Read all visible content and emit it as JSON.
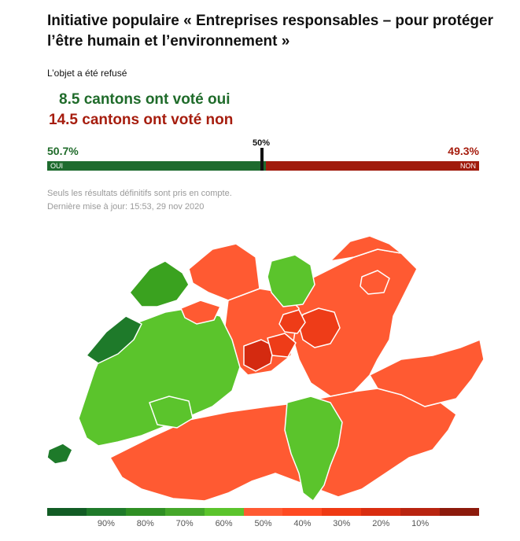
{
  "title": "Initiative populaire « Entreprises responsables – pour protéger l’être humain et l’environnement »",
  "subtitle": "L’objet a été refusé",
  "cantons_yes": "8.5 cantons ont voté oui",
  "cantons_no": "14.5 cantons ont voté non",
  "result": {
    "yes_pct_label": "50.7%",
    "no_pct_label": "49.3%",
    "midpoint_label": "50%",
    "yes_label": "OUI",
    "no_label": "NON",
    "yes_share": 0.507
  },
  "note_line1": "Seuls les résultats définitifs sont pris en compte.",
  "note_line2": "Dernière mise à jour: 15:53, 29 nov 2020",
  "colors": {
    "yes_text": "#1f6b2a",
    "no_text": "#a61d0e",
    "map_light_green": "#5bc42c",
    "map_mid_green": "#3aa21f",
    "map_dark_green": "#1e7a2a",
    "map_orange": "#ff5a32",
    "map_red": "#ee3c18",
    "map_dark_red": "#d42a10"
  },
  "legend": {
    "colors": [
      "#125c25",
      "#1f7a2a",
      "#2f8f24",
      "#45a72a",
      "#5bc42c",
      "#ff5a32",
      "#ff4a22",
      "#ef3a14",
      "#d92d10",
      "#b82410",
      "#8c1a0c"
    ],
    "ticks": [
      "90%",
      "80%",
      "70%",
      "60%",
      "50%",
      "40%",
      "30%",
      "20%",
      "10%"
    ]
  }
}
